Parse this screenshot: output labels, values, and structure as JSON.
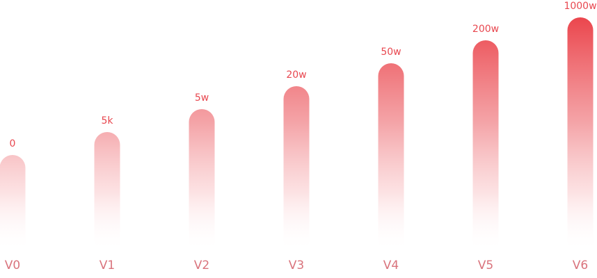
{
  "levels": [
    {
      "name": "V0",
      "threshold": "0"
    },
    {
      "name": "V1",
      "threshold": "5k"
    },
    {
      "name": "V2",
      "threshold": "5w"
    },
    {
      "name": "V3",
      "threshold": "20w"
    },
    {
      "name": "V4",
      "threshold": "50w"
    },
    {
      "name": "V5",
      "threshold": "200w"
    },
    {
      "name": "V6",
      "threshold": "1000w"
    }
  ]
}
